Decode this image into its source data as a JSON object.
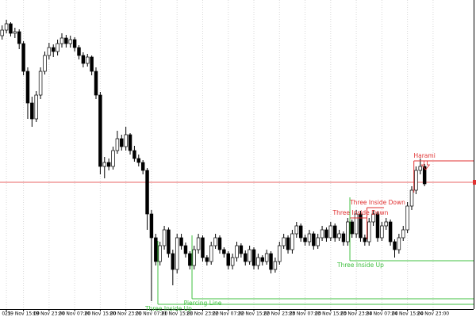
{
  "chart_data": {
    "type": "candlestick",
    "xlim": [
      -0.5,
      110.5
    ],
    "ylim": [
      0,
      390
    ],
    "grid": true,
    "up_color": "#ffffff",
    "down_color": "#000000",
    "outline_color": "#000000",
    "xticks": [
      {
        "value": 1,
        "label": "025"
      },
      {
        "value": 5,
        "label": "19 Nov 15:00"
      },
      {
        "value": 11,
        "label": "19 Nov 23:00"
      },
      {
        "value": 17,
        "label": "20 Nov 07:00"
      },
      {
        "value": 23,
        "label": "20 Nov 15:00"
      },
      {
        "value": 29,
        "label": "20 Nov 23:00"
      },
      {
        "value": 35,
        "label": "21 Nov 07:00"
      },
      {
        "value": 41,
        "label": "21 Nov 15:00"
      },
      {
        "value": 47,
        "label": "21 Nov 23:00"
      },
      {
        "value": 53,
        "label": "22 Nov 07:00"
      },
      {
        "value": 59,
        "label": "22 Nov 15:00"
      },
      {
        "value": 65,
        "label": "22 Nov 23:00"
      },
      {
        "value": 71,
        "label": "23 Nov 07:00"
      },
      {
        "value": 77,
        "label": "23 Nov 15:00"
      },
      {
        "value": 83,
        "label": "23 Nov 23:00"
      },
      {
        "value": 89,
        "label": "24 Nov 07:00"
      },
      {
        "value": 95,
        "label": "24 Nov 15:00"
      },
      {
        "value": 101,
        "label": "24 Nov 23:00"
      }
    ],
    "ohlc": [
      [
        345,
        358,
        340,
        352
      ],
      [
        352,
        365,
        348,
        360
      ],
      [
        360,
        362,
        344,
        348
      ],
      [
        348,
        355,
        342,
        350
      ],
      [
        350,
        353,
        328,
        335
      ],
      [
        335,
        338,
        295,
        300
      ],
      [
        300,
        305,
        240,
        260
      ],
      [
        260,
        268,
        230,
        240
      ],
      [
        240,
        275,
        236,
        270
      ],
      [
        270,
        305,
        265,
        300
      ],
      [
        300,
        325,
        296,
        320
      ],
      [
        320,
        336,
        315,
        330
      ],
      [
        330,
        334,
        318,
        325
      ],
      [
        325,
        340,
        320,
        335
      ],
      [
        335,
        348,
        330,
        342
      ],
      [
        342,
        346,
        330,
        335
      ],
      [
        335,
        345,
        330,
        340
      ],
      [
        340,
        343,
        325,
        330
      ],
      [
        330,
        333,
        315,
        320
      ],
      [
        320,
        324,
        305,
        310
      ],
      [
        310,
        322,
        306,
        318
      ],
      [
        318,
        320,
        295,
        300
      ],
      [
        300,
        305,
        265,
        270
      ],
      [
        270,
        274,
        170,
        180
      ],
      [
        180,
        192,
        165,
        185
      ],
      [
        185,
        190,
        175,
        180
      ],
      [
        180,
        205,
        176,
        200
      ],
      [
        200,
        225,
        196,
        215
      ],
      [
        215,
        220,
        200,
        205
      ],
      [
        205,
        230,
        200,
        220
      ],
      [
        220,
        222,
        195,
        200
      ],
      [
        200,
        206,
        186,
        190
      ],
      [
        190,
        195,
        180,
        185
      ],
      [
        185,
        188,
        170,
        175
      ],
      [
        175,
        178,
        100,
        120
      ],
      [
        120,
        125,
        10,
        90
      ],
      [
        90,
        95,
        55,
        60
      ],
      [
        60,
        85,
        55,
        80
      ],
      [
        80,
        105,
        75,
        100
      ],
      [
        100,
        103,
        65,
        70
      ],
      [
        70,
        75,
        30,
        50
      ],
      [
        50,
        95,
        45,
        90
      ],
      [
        90,
        95,
        75,
        80
      ],
      [
        80,
        84,
        65,
        70
      ],
      [
        70,
        73,
        50,
        55
      ],
      [
        55,
        80,
        50,
        75
      ],
      [
        75,
        95,
        70,
        90
      ],
      [
        90,
        93,
        60,
        65
      ],
      [
        65,
        68,
        55,
        60
      ],
      [
        60,
        85,
        56,
        80
      ],
      [
        80,
        95,
        76,
        90
      ],
      [
        90,
        93,
        70,
        75
      ],
      [
        75,
        78,
        65,
        70
      ],
      [
        70,
        73,
        50,
        55
      ],
      [
        55,
        70,
        50,
        65
      ],
      [
        65,
        85,
        60,
        80
      ],
      [
        80,
        83,
        65,
        70
      ],
      [
        70,
        74,
        55,
        60
      ],
      [
        60,
        80,
        56,
        75
      ],
      [
        75,
        78,
        50,
        55
      ],
      [
        55,
        70,
        50,
        65
      ],
      [
        65,
        68,
        55,
        60
      ],
      [
        60,
        75,
        56,
        70
      ],
      [
        70,
        73,
        45,
        50
      ],
      [
        50,
        65,
        46,
        60
      ],
      [
        60,
        85,
        56,
        80
      ],
      [
        80,
        95,
        76,
        90
      ],
      [
        90,
        93,
        70,
        75
      ],
      [
        75,
        100,
        70,
        95
      ],
      [
        95,
        110,
        90,
        105
      ],
      [
        105,
        108,
        85,
        90
      ],
      [
        90,
        94,
        80,
        85
      ],
      [
        85,
        100,
        80,
        95
      ],
      [
        95,
        98,
        75,
        80
      ],
      [
        80,
        95,
        76,
        90
      ],
      [
        90,
        105,
        86,
        100
      ],
      [
        100,
        103,
        85,
        90
      ],
      [
        90,
        110,
        86,
        105
      ],
      [
        105,
        108,
        85,
        90
      ],
      [
        90,
        100,
        86,
        95
      ],
      [
        95,
        98,
        80,
        85
      ],
      [
        85,
        115,
        80,
        110
      ],
      [
        110,
        113,
        90,
        95
      ],
      [
        95,
        125,
        90,
        120
      ],
      [
        120,
        124,
        85,
        90
      ],
      [
        90,
        94,
        80,
        85
      ],
      [
        85,
        115,
        80,
        110
      ],
      [
        110,
        125,
        105,
        120
      ],
      [
        120,
        123,
        85,
        90
      ],
      [
        90,
        110,
        86,
        105
      ],
      [
        105,
        115,
        100,
        110
      ],
      [
        110,
        113,
        80,
        85
      ],
      [
        85,
        88,
        65,
        75
      ],
      [
        75,
        95,
        70,
        90
      ],
      [
        90,
        105,
        86,
        100
      ],
      [
        100,
        135,
        96,
        130
      ],
      [
        130,
        155,
        125,
        150
      ],
      [
        150,
        180,
        145,
        175
      ],
      [
        175,
        190,
        170,
        180
      ],
      [
        180,
        183,
        155,
        158
      ]
    ],
    "price_line": {
      "value": 160,
      "color": "#e03030"
    },
    "patterns": [
      {
        "label": "Harami",
        "color": "#e03030",
        "at": 97,
        "level": 187,
        "to": null,
        "arrow": "down"
      },
      {
        "label": "Three Inside Down",
        "color": "#e03030",
        "at": 86,
        "level": 128,
        "to": 89
      },
      {
        "label": "Three Inside Down",
        "color": "#e03030",
        "at": 82,
        "level": 115,
        "to": 85
      },
      {
        "label": "Three Inside Up",
        "color": "#40c040",
        "at": 82,
        "level": 61,
        "to": null
      },
      {
        "label": "Piercing Line",
        "color": "#40c040",
        "at": 45,
        "level": 13,
        "to": null
      },
      {
        "label": "Three Inside Up",
        "color": "#40c040",
        "at": 37,
        "level": 6,
        "to": null
      }
    ]
  }
}
